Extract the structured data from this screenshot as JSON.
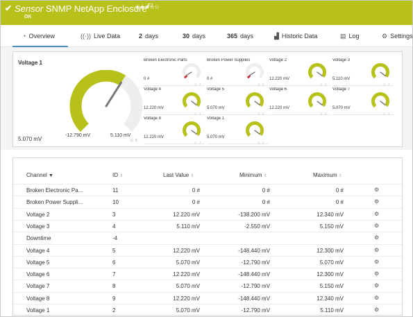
{
  "header": {
    "check_icon": "checkmark-icon",
    "title_prefix": "Sensor",
    "title_name": "SNMP NetApp Enclosure",
    "title_id": "F2",
    "stars": "★★★☆☆",
    "status": "OK",
    "color": "#b8c11a"
  },
  "tabs": [
    {
      "icon": "◔",
      "icon_name": "overview-icon",
      "label": "Overview"
    },
    {
      "icon": "((·))",
      "icon_name": "live-data-icon",
      "label": "Live Data"
    },
    {
      "num": "2",
      "label": "days"
    },
    {
      "num": "30",
      "label": "days"
    },
    {
      "num": "365",
      "label": "days"
    },
    {
      "icon": "▟",
      "icon_name": "chart-icon",
      "label": "Historic Data"
    },
    {
      "icon": "▤",
      "icon_name": "log-icon",
      "label": "Log"
    },
    {
      "icon": "⚙",
      "icon_name": "settings-icon",
      "label": "Settings"
    }
  ],
  "primary_gauge": {
    "title": "Voltage 1",
    "value": "5.070 mV",
    "min_label": "-12.790 mV",
    "max_label": "5.110 mV",
    "level": 0.99,
    "color": "#b8c11a",
    "icons": "◎ ⇕"
  },
  "gauges": [
    {
      "title": "Broken Electronic Parts",
      "value": "0 #",
      "color": "#d0202b",
      "level": 0.05
    },
    {
      "title": "Broken Power Supplies",
      "value": "0 #",
      "color": "#d0202b",
      "level": 0.05
    },
    {
      "title": "Voltage 2",
      "value": "12.220 mV",
      "color": "#b8c11a",
      "level": 0.97
    },
    {
      "title": "Voltage 3",
      "value": "5.110 mV",
      "color": "#b8c11a",
      "level": 0.97
    },
    {
      "title": "Voltage 4",
      "value": "12.220 mV",
      "color": "#b8c11a",
      "level": 0.97
    },
    {
      "title": "Voltage 5",
      "value": "5.070 mV",
      "color": "#b8c11a",
      "level": 0.97
    },
    {
      "title": "Voltage 6",
      "value": "12.220 mV",
      "color": "#b8c11a",
      "level": 0.97
    },
    {
      "title": "Voltage 7",
      "value": "5.070 mV",
      "color": "#b8c11a",
      "level": 0.97
    },
    {
      "title": "Voltage 8",
      "value": "12.220 mV",
      "color": "#b8c11a",
      "level": 0.97
    },
    {
      "title": "Voltage 1",
      "value": "5.070 mV",
      "color": "#b8c11a",
      "level": 0.97
    }
  ],
  "table": {
    "headers": {
      "channel": "Channel",
      "id": "ID",
      "last_value": "Last Value",
      "minimum": "Minimum",
      "maximum": "Maximum"
    },
    "rows": [
      {
        "channel": "Broken Electronic Pa...",
        "id": "11",
        "last": "0 #",
        "min": "0 #",
        "max": "0 #"
      },
      {
        "channel": "Broken Power Suppli...",
        "id": "10",
        "last": "0 #",
        "min": "0 #",
        "max": "0 #"
      },
      {
        "channel": "Voltage 2",
        "id": "3",
        "last": "12.220 mV",
        "min": "-138.200 mV",
        "max": "12.340 mV"
      },
      {
        "channel": "Voltage 3",
        "id": "4",
        "last": "5.110 mV",
        "min": "-2.550 mV",
        "max": "5.150 mV"
      },
      {
        "channel": "Downtime",
        "id": "-4",
        "last": "",
        "min": "",
        "max": ""
      },
      {
        "channel": "Voltage 4",
        "id": "5",
        "last": "12.220 mV",
        "min": "-148.440 mV",
        "max": "12.300 mV"
      },
      {
        "channel": "Voltage 5",
        "id": "6",
        "last": "5.070 mV",
        "min": "-12.790 mV",
        "max": "5.070 mV"
      },
      {
        "channel": "Voltage 6",
        "id": "7",
        "last": "12.220 mV",
        "min": "-148.440 mV",
        "max": "12.300 mV"
      },
      {
        "channel": "Voltage 7",
        "id": "8",
        "last": "5.070 mV",
        "min": "-12.790 mV",
        "max": "5.150 mV"
      },
      {
        "channel": "Voltage 8",
        "id": "9",
        "last": "12.220 mV",
        "min": "-148.440 mV",
        "max": "12.340 mV"
      },
      {
        "channel": "Voltage 1",
        "id": "2",
        "last": "5.070 mV",
        "min": "-12.790 mV",
        "max": "5.110 mV"
      }
    ]
  }
}
